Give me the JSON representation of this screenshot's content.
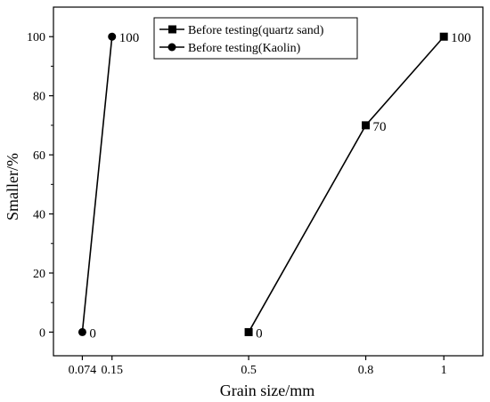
{
  "chart_data": {
    "type": "line",
    "xlabel": "Grain size/mm",
    "ylabel": "Smaller/%",
    "x_ticks": [
      "0.074",
      "0.15",
      "0.5",
      "0.8",
      "1"
    ],
    "y_ticks": [
      "0",
      "20",
      "40",
      "60",
      "80",
      "100"
    ],
    "xlim": [
      0,
      1.1
    ],
    "ylim": [
      -8,
      110
    ],
    "grid": false,
    "legend_position": "top-center",
    "series": [
      {
        "name": "Before testing(quartz sand)",
        "marker": "square",
        "x": [
          0.5,
          0.8,
          1.0
        ],
        "y": [
          0,
          70,
          100
        ],
        "labels": [
          "0",
          "70",
          "100"
        ]
      },
      {
        "name": "Before testing(Kaolin)",
        "marker": "circle",
        "x": [
          0.074,
          0.15
        ],
        "y": [
          0,
          100
        ],
        "labels": [
          "0",
          "100"
        ]
      }
    ]
  }
}
